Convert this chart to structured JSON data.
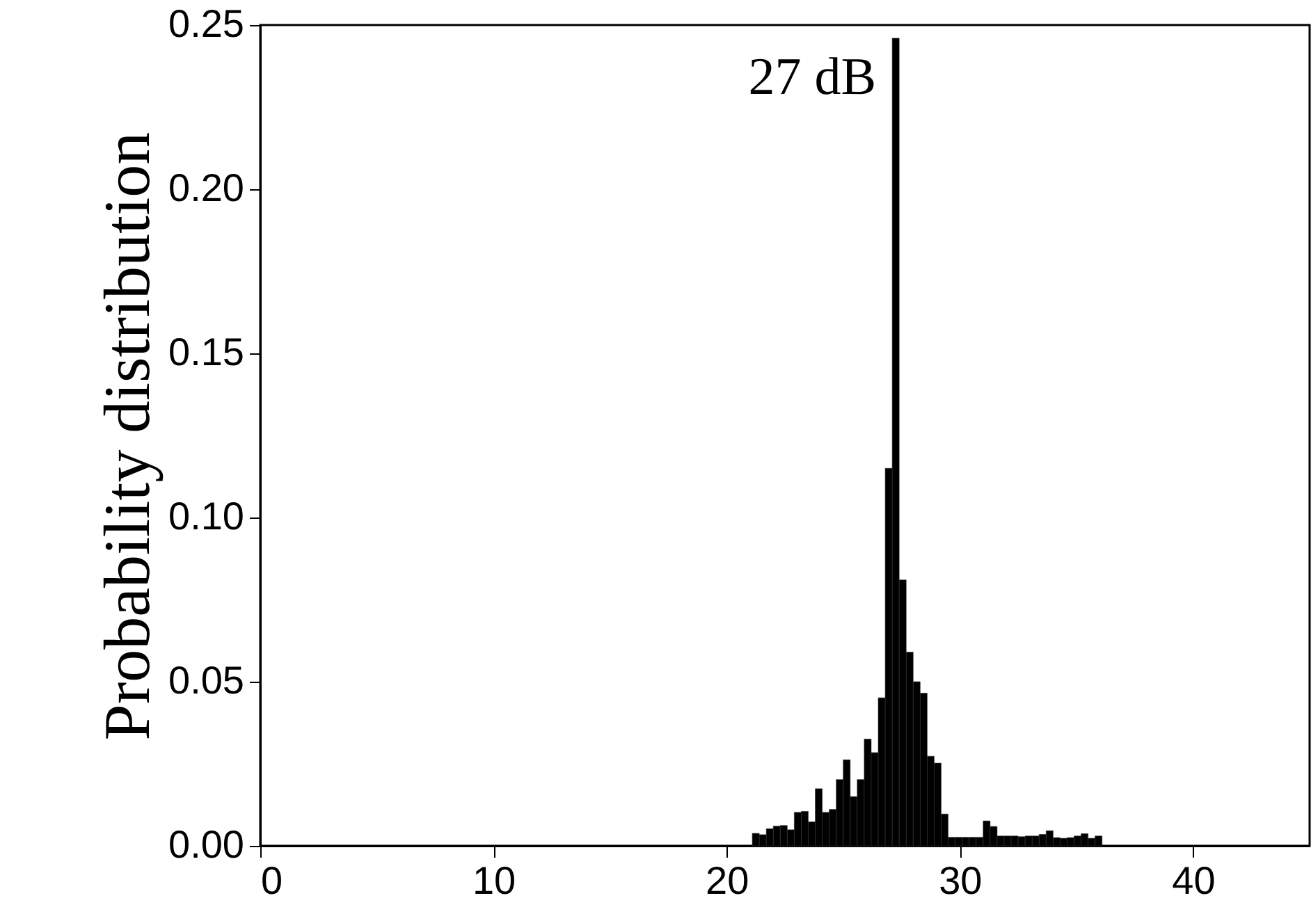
{
  "chart_data": {
    "type": "histogram",
    "ylabel": "Probability distribution",
    "bins": [
      21.1,
      21.4,
      21.7,
      22.0,
      22.3,
      22.6,
      22.9,
      23.2,
      23.5,
      23.8,
      24.1,
      24.4,
      24.7,
      25.0,
      25.3,
      25.6,
      25.9,
      26.2,
      26.5,
      26.8,
      27.1,
      27.4,
      27.7,
      28.0,
      28.3,
      28.6,
      28.9,
      29.2,
      29.5,
      29.8,
      30.1,
      30.4,
      30.7,
      31.0,
      31.3,
      31.6,
      31.9,
      32.2,
      32.5,
      32.8,
      33.1,
      33.4,
      33.7,
      34.0,
      34.3,
      34.6,
      34.9,
      35.2,
      35.5,
      35.8,
      36.1
    ],
    "values": [
      0.0038,
      0.0034,
      0.0052,
      0.006,
      0.0062,
      0.0049,
      0.0102,
      0.0105,
      0.0073,
      0.0174,
      0.0102,
      0.0111,
      0.0202,
      0.0262,
      0.015,
      0.0202,
      0.0325,
      0.0284,
      0.0451,
      0.115,
      0.246,
      0.081,
      0.059,
      0.05,
      0.0465,
      0.0273,
      0.0252,
      0.0097,
      0.0026,
      0.0026,
      0.0026,
      0.0026,
      0.0026,
      0.0076,
      0.0059,
      0.003,
      0.003,
      0.003,
      0.0028,
      0.003,
      0.003,
      0.0035,
      0.0046,
      0.0025,
      0.0023,
      0.0025,
      0.003,
      0.0037,
      0.0023,
      0.003
    ],
    "color": "#000000",
    "xlim": [
      0,
      45
    ],
    "xticks": [
      0,
      10,
      20,
      30,
      40
    ],
    "ylim": [
      0,
      0.25
    ],
    "yticks": [
      {
        "value": 0,
        "label": "0.00"
      },
      {
        "value": 0.05,
        "label": "0.05"
      },
      {
        "value": 0.1,
        "label": "0.10"
      },
      {
        "value": 0.15,
        "label": "0.15"
      },
      {
        "value": 0.2,
        "label": "0.20"
      },
      {
        "value": 0.25,
        "label": "0.25"
      }
    ],
    "annotations": [
      {
        "text": "27 dB",
        "x": 27.25,
        "y": 0.246
      }
    ],
    "grid": false
  }
}
